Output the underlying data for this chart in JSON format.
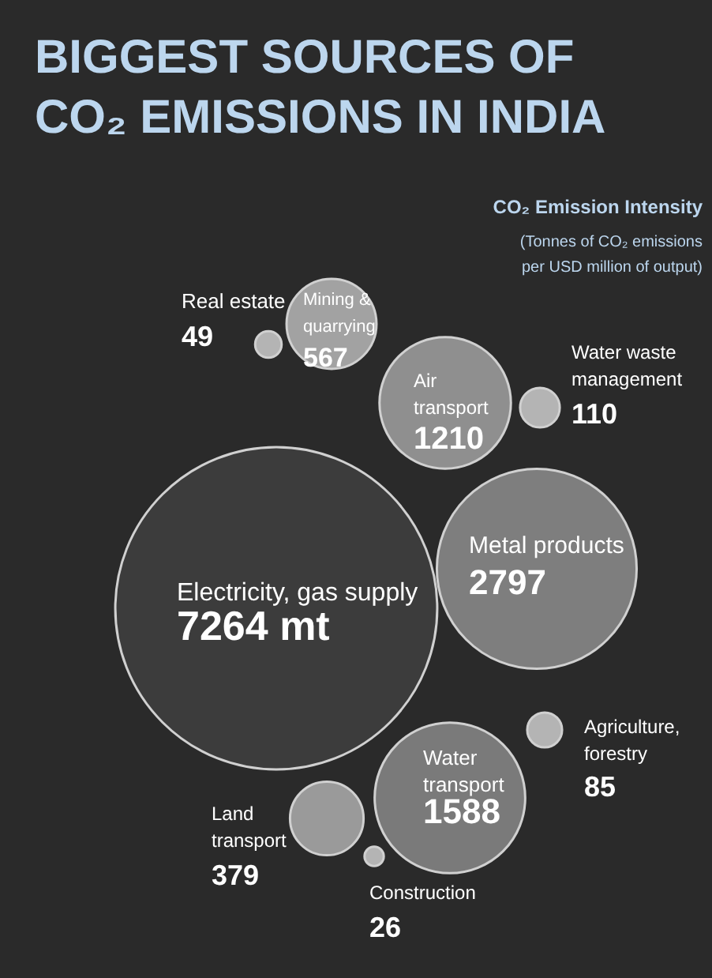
{
  "chart_data": {
    "type": "other",
    "title": "BIGGEST SOURCES OF CO₂ EMISSIONS IN INDIA",
    "legend_title": "CO₂ Emission Intensity",
    "subtitle": "(Tonnes of CO₂ emissions per USD million of output)",
    "categories": [
      "Electricity, gas supply",
      "Metal products",
      "Water transport",
      "Air transport",
      "Mining & quarrying",
      "Land transport",
      "Real estate",
      "Water waste management",
      "Agriculture, forestry",
      "Construction"
    ],
    "values": [
      7264,
      2797,
      1588,
      1210,
      567,
      379,
      49,
      110,
      85,
      26
    ],
    "value_labels": [
      "7264 mt",
      "2797",
      "1588",
      "1210",
      "567",
      "379",
      "49",
      "110",
      "85",
      "26"
    ],
    "colors": [
      "#3c3c3c",
      "#7e7e7e",
      "#7a7a7a",
      "#8f8f8f",
      "#a2a2a2",
      "#9a9a9a",
      "#b4b4b4",
      "#b4b4b4",
      "#b4b4b4",
      "#b4b4b4"
    ]
  }
}
